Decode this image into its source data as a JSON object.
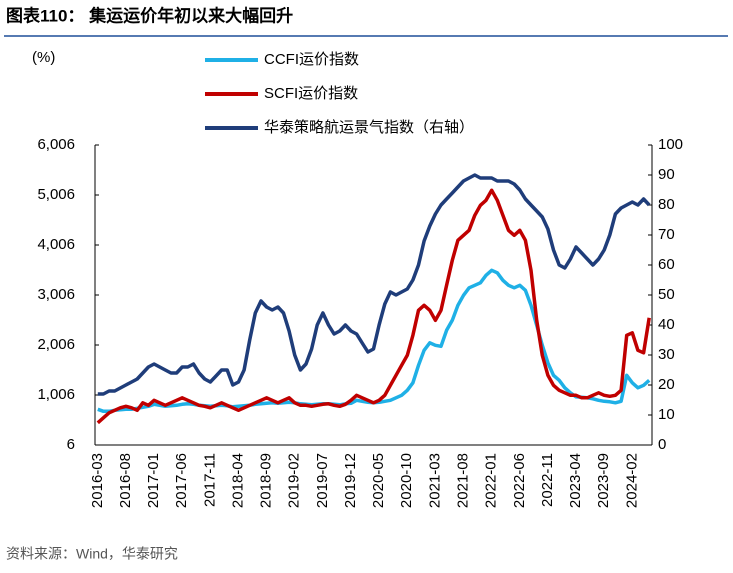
{
  "chart_data": {
    "type": "line",
    "title": "图表110：  集运运价年初以来大幅回升",
    "y_label": "(%)",
    "source": "资料来源：Wind，华泰研究",
    "categories": [
      "2016-03",
      null,
      null,
      null,
      null,
      "2016-08",
      null,
      null,
      null,
      null,
      "2017-01",
      null,
      null,
      null,
      null,
      "2017-06",
      null,
      null,
      null,
      null,
      "2017-11",
      null,
      null,
      null,
      null,
      "2018-04",
      null,
      null,
      null,
      null,
      "2018-09",
      null,
      null,
      null,
      null,
      "2019-02",
      null,
      null,
      null,
      null,
      "2019-07",
      null,
      null,
      null,
      null,
      "2019-12",
      null,
      null,
      null,
      null,
      "2020-05",
      null,
      null,
      null,
      null,
      "2020-10",
      null,
      null,
      null,
      null,
      "2021-03",
      null,
      null,
      null,
      null,
      "2021-08",
      null,
      null,
      null,
      null,
      "2022-01",
      null,
      null,
      null,
      null,
      "2022-06",
      null,
      null,
      null,
      null,
      "2022-11",
      null,
      null,
      null,
      null,
      "2023-04",
      null,
      null,
      null,
      null,
      "2023-09",
      null,
      null,
      null,
      null,
      "2024-02",
      null,
      null,
      null
    ],
    "series": [
      {
        "name": "CCFI运价指数",
        "color": "#1fb0e6",
        "values": [
          720,
          680,
          680,
          700,
          710,
          720,
          720,
          740,
          760,
          780,
          820,
          800,
          780,
          790,
          800,
          820,
          830,
          820,
          800,
          790,
          780,
          790,
          800,
          790,
          770,
          780,
          790,
          800,
          820,
          830,
          840,
          850,
          840,
          850,
          860,
          850,
          830,
          820,
          810,
          820,
          830,
          830,
          820,
          810,
          830,
          840,
          900,
          880,
          860,
          850,
          860,
          880,
          900,
          950,
          1000,
          1100,
          1250,
          1600,
          1900,
          2050,
          2000,
          1980,
          2300,
          2500,
          2800,
          3000,
          3150,
          3200,
          3250,
          3400,
          3500,
          3450,
          3300,
          3200,
          3150,
          3200,
          3100,
          2800,
          2400,
          2000,
          1650,
          1400,
          1300,
          1150,
          1050,
          970,
          960,
          950,
          930,
          900,
          880,
          870,
          850,
          880,
          1400,
          1250,
          1150,
          1200,
          1300
        ]
      },
      {
        "name": "SCFI运价指数",
        "color": "#c00000",
        "values": [
          450,
          550,
          650,
          700,
          750,
          780,
          750,
          700,
          850,
          800,
          900,
          850,
          800,
          850,
          900,
          950,
          900,
          850,
          800,
          780,
          750,
          800,
          850,
          800,
          750,
          700,
          750,
          800,
          850,
          900,
          950,
          900,
          850,
          900,
          950,
          850,
          800,
          800,
          780,
          800,
          820,
          830,
          800,
          780,
          820,
          900,
          1000,
          950,
          900,
          850,
          900,
          1000,
          1200,
          1400,
          1600,
          1800,
          2200,
          2700,
          2800,
          2700,
          2500,
          2700,
          3200,
          3700,
          4100,
          4200,
          4300,
          4600,
          4800,
          4900,
          5100,
          4900,
          4600,
          4300,
          4200,
          4300,
          4100,
          3500,
          2500,
          1800,
          1400,
          1200,
          1100,
          1050,
          1000,
          1000,
          950,
          950,
          1000,
          1050,
          1000,
          980,
          1000,
          1100,
          2200,
          2250,
          1900,
          1850,
          2550
        ]
      },
      {
        "name": "华泰策略航运景气指数（右轴）",
        "color": "#1f3d7a",
        "axis": "y2",
        "values": [
          17,
          17,
          18,
          18,
          19,
          20,
          21,
          22,
          24,
          26,
          27,
          26,
          25,
          24,
          24,
          26,
          26,
          27,
          24,
          22,
          21,
          23,
          25,
          25,
          20,
          21,
          25,
          35,
          44,
          48,
          46,
          45,
          46,
          44,
          38,
          30,
          25,
          27,
          32,
          40,
          44,
          40,
          37,
          38,
          40,
          38,
          37,
          34,
          31,
          32,
          40,
          47,
          51,
          50,
          51,
          52,
          55,
          60,
          68,
          73,
          77,
          80,
          82,
          84,
          86,
          88,
          89,
          90,
          89,
          89,
          89,
          88,
          88,
          88,
          87,
          85,
          82,
          80,
          78,
          76,
          72,
          65,
          60,
          59,
          62,
          66,
          64,
          62,
          60,
          62,
          65,
          70,
          77,
          79,
          80,
          81,
          80,
          82,
          80
        ]
      }
    ],
    "ylim": [
      6,
      6006
    ],
    "yticks": [
      6,
      {
        "value": 1006,
        "label": "1,006"
      },
      {
        "value": 2006,
        "label": "2,006"
      },
      {
        "value": 3006,
        "label": "3,006"
      },
      {
        "value": 4006,
        "label": "4,006"
      },
      {
        "value": 5006,
        "label": "5,006"
      },
      {
        "value": 6006,
        "label": "6,006"
      }
    ],
    "y2lim": [
      0,
      100
    ],
    "y2ticks": [
      0,
      10,
      20,
      30,
      40,
      50,
      60,
      70,
      80,
      90,
      100
    ],
    "grid": false,
    "legend": "top"
  }
}
